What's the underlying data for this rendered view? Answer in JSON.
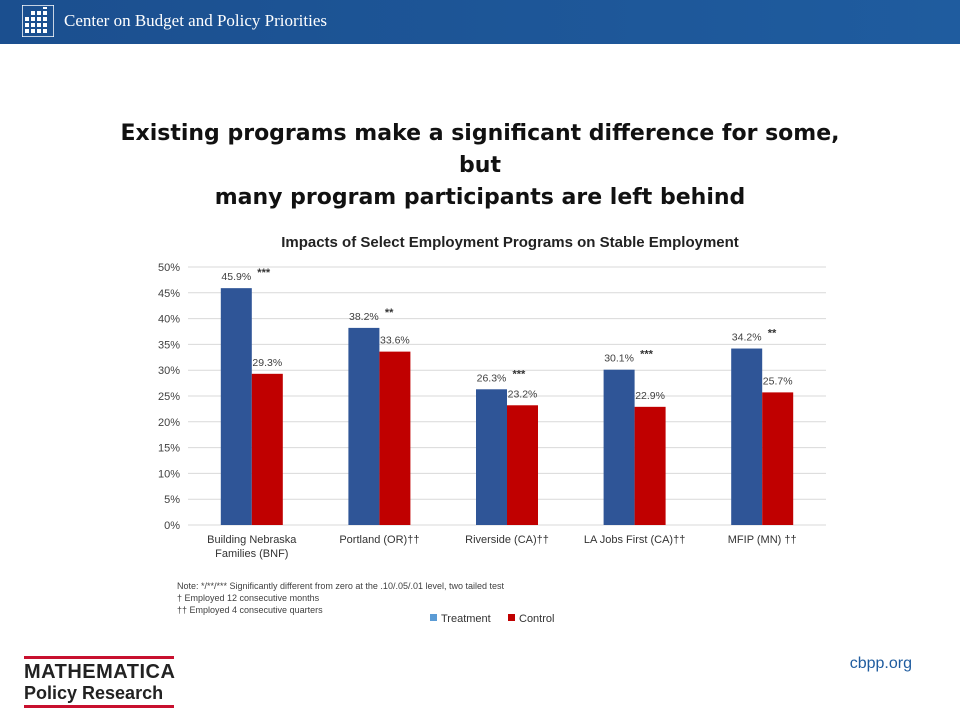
{
  "header": {
    "org_name": "Center on Budget and Policy Priorities",
    "bar_color": "#1f5c9f"
  },
  "slide": {
    "title_line1": "Existing programs make a significant difference for some, but",
    "title_line2": "many program participants are left behind"
  },
  "chart_data": {
    "type": "bar",
    "title": "Impacts of Select Employment Programs on Stable Employment",
    "categories": [
      [
        "Building Nebraska",
        "Families (BNF)"
      ],
      [
        "Portland (OR)††"
      ],
      [
        "Riverside (CA)††"
      ],
      [
        "LA Jobs First (CA)††"
      ],
      [
        "MFIP (MN) ††"
      ]
    ],
    "series": [
      {
        "name": "Treatment",
        "color": "#2f5597",
        "values": [
          45.9,
          38.2,
          26.3,
          30.1,
          34.2
        ],
        "labels": [
          "45.9%",
          "38.2%",
          "26.3%",
          "30.1%",
          "34.2%"
        ],
        "significance": [
          "***",
          "**",
          "***",
          "***",
          "**"
        ]
      },
      {
        "name": "Control",
        "color": "#c00000",
        "values": [
          29.3,
          33.6,
          23.2,
          22.9,
          25.7
        ],
        "labels": [
          "29.3%",
          "33.6%",
          "23.2%",
          "22.9%",
          "25.7%"
        ]
      }
    ],
    "ylim": [
      0,
      50
    ],
    "yticks": [
      "0%",
      "5%",
      "10%",
      "15%",
      "20%",
      "25%",
      "30%",
      "35%",
      "40%",
      "45%",
      "50%"
    ],
    "grid": true,
    "legend_position": "bottom",
    "notes": [
      "Note: */**/*** Significantly different from zero at the .10/.05/.01 level, two tailed test",
      "† Employed 12 consecutive months",
      "†† Employed 4 consecutive quarters"
    ]
  },
  "footer": {
    "logo_line1": "MATHEMATICA",
    "logo_line2": "Policy Research",
    "url": "cbpp.org"
  }
}
